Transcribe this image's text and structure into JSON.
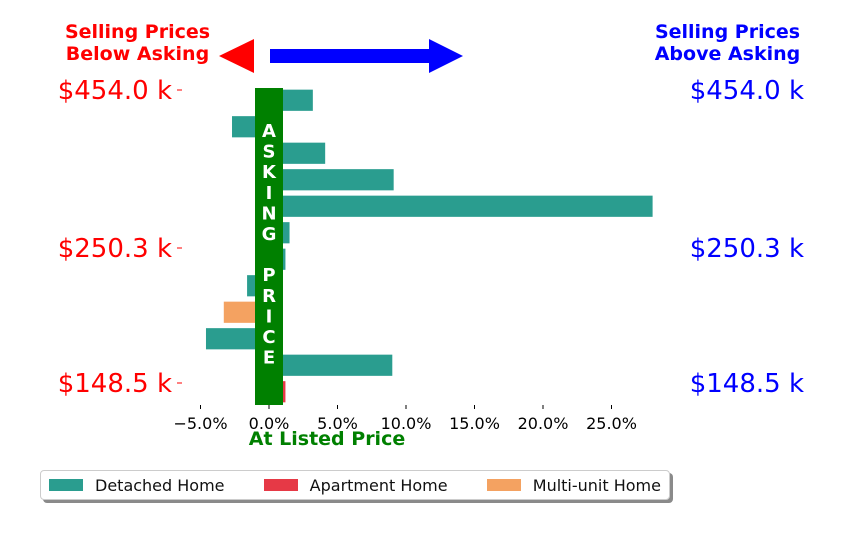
{
  "header": {
    "left_line1": "Selling Prices",
    "left_line2": "Below Asking",
    "right_line1": "Selling Prices",
    "right_line2": "Above Asking"
  },
  "colors": {
    "below": "#ff0000",
    "above": "#0000ff",
    "asking_bar": "#008000",
    "detached": "#2a9d8f",
    "apartment": "#e63946",
    "multi": "#f4a261"
  },
  "asking_label": "ASKING PRICE",
  "chart_data": {
    "type": "bar",
    "orientation": "horizontal",
    "title": "",
    "xlabel": "At Listed Price",
    "xlim": [
      -7.0,
      29.0
    ],
    "x_ticks": [
      "−5.0%",
      "0.0%",
      "5.0%",
      "10.0%",
      "15.0%",
      "20.0%",
      "25.0%"
    ],
    "x_tick_values": [
      -5,
      0,
      5,
      10,
      15,
      20,
      25
    ],
    "y_ticks_left": [
      "$454.0 k",
      "$250.3 k",
      "$148.5 k"
    ],
    "y_ticks_right": [
      "$454.0 k",
      "$250.3 k",
      "$148.5 k"
    ],
    "bars": [
      {
        "series": "Detached Home",
        "value": 3.2
      },
      {
        "series": "Detached Home",
        "value": -2.7
      },
      {
        "series": "Detached Home",
        "value": 4.1
      },
      {
        "series": "Detached Home",
        "value": 9.1
      },
      {
        "series": "Detached Home",
        "value": 28.0
      },
      {
        "series": "Detached Home",
        "value": 1.5
      },
      {
        "series": "Detached Home",
        "value": 1.2
      },
      {
        "series": "Detached Home",
        "value": -1.6
      },
      {
        "series": "Multi-unit Home",
        "value": -3.3
      },
      {
        "series": "Detached Home",
        "value": -4.6
      },
      {
        "series": "Detached Home",
        "value": 9.0
      },
      {
        "series": "Apartment Home",
        "value": 1.2
      }
    ],
    "series": [
      {
        "name": "Detached Home"
      },
      {
        "name": "Apartment Home"
      },
      {
        "name": "Multi-unit Home"
      }
    ]
  }
}
